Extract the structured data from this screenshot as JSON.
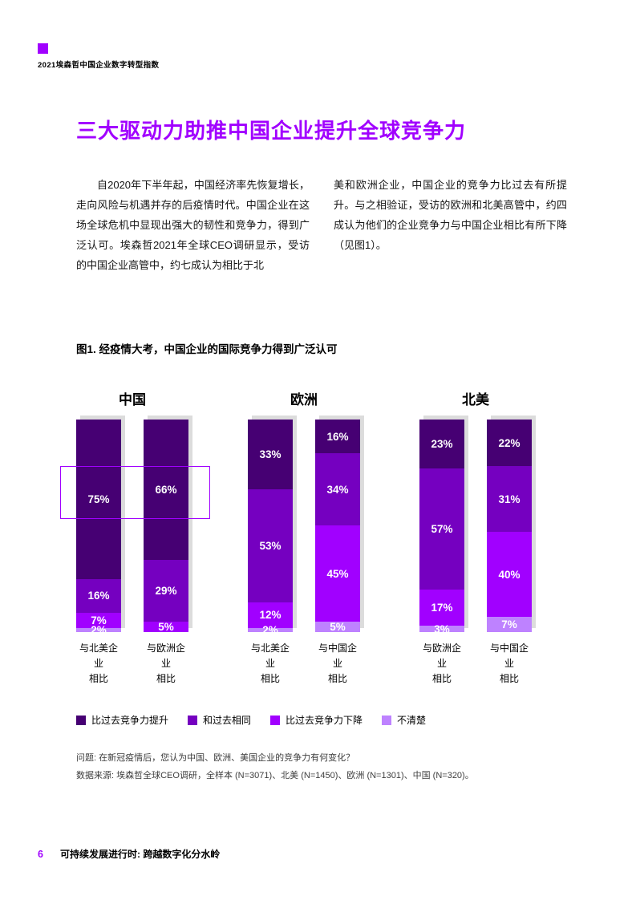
{
  "header": {
    "logo_color": "#a100ff",
    "brand": "2021埃森哲中国企业数字转型指数"
  },
  "title": "三大驱动力助推中国企业提升全球竞争力",
  "body": {
    "col1": "自2020年下半年起，中国经济率先恢复增长，走向风险与机遇并存的后疫情时代。中国企业在这场全球危机中显现出强大的韧性和竞争力，得到广泛认可。埃森哲2021年全球CEO调研显示，受访的中国企业高管中，约七成认为相比于北",
    "col2": "美和欧洲企业，中国企业的竞争力比过去有所提升。与之相验证，受访的欧洲和北美高管中，约四成认为他们的企业竞争力与中国企业相比有所下降（见图1）。"
  },
  "figure": {
    "title": "图1. 经疫情大考，中国企业的国际竞争力得到广泛认可",
    "question": "问题: 在新冠疫情后，您认为中国、欧洲、美国企业的竞争力有何变化？",
    "source": "数据来源: 埃森哲全球CEO调研，全样本 (N=3071)、北美 (N=1450)、欧洲 (N=1301)、中国 (N=320)。"
  },
  "footer": {
    "page_number": "6",
    "text": "可持续发展进行时: 跨越数字化分水岭"
  },
  "chart_data": {
    "type": "bar",
    "stacked": true,
    "value_unit": "%",
    "ylim": [
      0,
      100
    ],
    "grid": false,
    "legend_position": "bottom",
    "series": [
      {
        "name": "比过去竞争力提升",
        "color": "#460073"
      },
      {
        "name": "和过去相同",
        "color": "#7500c0"
      },
      {
        "name": "比过去竞争力下降",
        "color": "#a100ff"
      },
      {
        "name": "不清楚",
        "color": "#be82ff"
      }
    ],
    "groups": [
      {
        "label": "中国",
        "bars": [
          {
            "axis_label_lines": [
              "与北美企业",
              "相比"
            ],
            "segments": [
              75,
              16,
              7,
              2
            ]
          },
          {
            "axis_label_lines": [
              "与欧洲企业",
              "相比"
            ],
            "segments": [
              66,
              29,
              5,
              0
            ]
          }
        ]
      },
      {
        "label": "欧洲",
        "bars": [
          {
            "axis_label_lines": [
              "与北美企业",
              "相比"
            ],
            "segments": [
              33,
              53,
              12,
              2
            ]
          },
          {
            "axis_label_lines": [
              "与中国企业",
              "相比"
            ],
            "segments": [
              16,
              34,
              45,
              5
            ]
          }
        ]
      },
      {
        "label": "北美",
        "bars": [
          {
            "axis_label_lines": [
              "与欧洲企业",
              "相比"
            ],
            "segments": [
              23,
              57,
              17,
              3
            ]
          },
          {
            "axis_label_lines": [
              "与中国企业",
              "相比"
            ],
            "segments": [
              22,
              31,
              40,
              7
            ]
          }
        ]
      }
    ],
    "annotations": [
      {
        "type": "highlight-box",
        "color": "#a100ff",
        "target_values": [
          "75%",
          "66%"
        ]
      }
    ]
  }
}
